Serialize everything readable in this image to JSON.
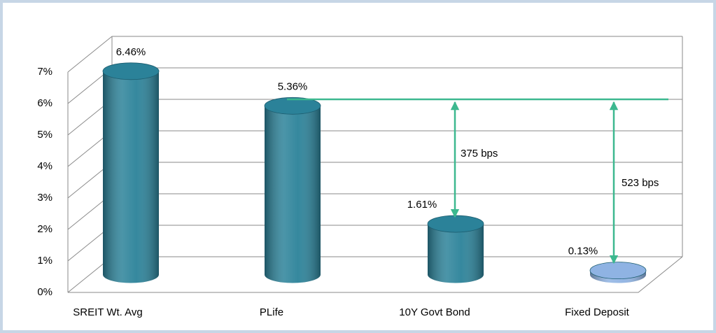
{
  "chart_data": {
    "type": "bar",
    "categories": [
      "SREIT Wt. Avg",
      "PLife",
      "10Y Govt Bond",
      "Fixed Deposit"
    ],
    "values": [
      6.46,
      5.36,
      1.61,
      0.13
    ],
    "value_labels": [
      "6.46%",
      "5.36%",
      "1.61%",
      "0.13%"
    ],
    "colors": [
      "#2b8299",
      "#2b8299",
      "#2b8299",
      "#8fb3e3"
    ],
    "ylim": [
      0,
      7
    ],
    "yticks": [
      {
        "value": 0,
        "label": "0%"
      },
      {
        "value": 1,
        "label": "1%"
      },
      {
        "value": 2,
        "label": "2%"
      },
      {
        "value": 3,
        "label": "3%"
      },
      {
        "value": 4,
        "label": "4%"
      },
      {
        "value": 5,
        "label": "5%"
      },
      {
        "value": 6,
        "label": "6%"
      },
      {
        "value": 7,
        "label": "7%"
      }
    ],
    "grid": true,
    "annotations": [
      "375 bps",
      "523 bps"
    ]
  }
}
